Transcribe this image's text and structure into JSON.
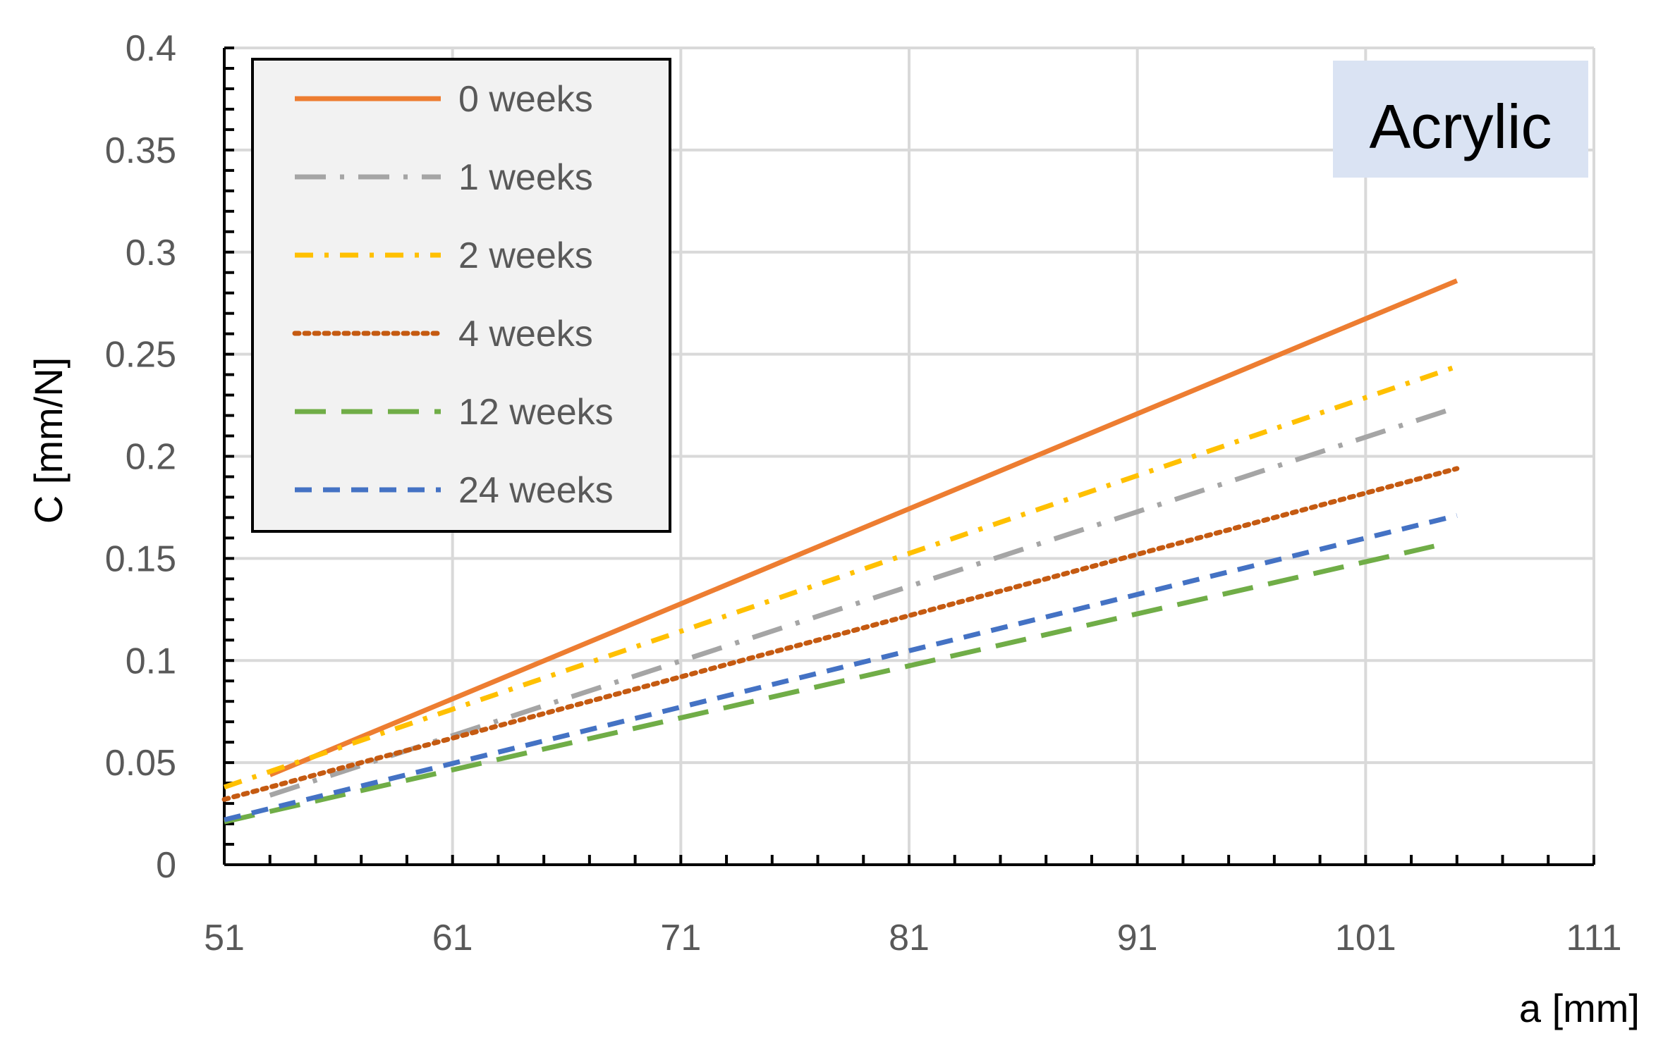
{
  "chart_data": {
    "type": "line",
    "title": "",
    "annotation": "Acrylic",
    "xlabel": "a [mm]",
    "ylabel": "C  [mm/N]",
    "xlim": [
      51,
      111
    ],
    "ylim": [
      0,
      0.4
    ],
    "x_ticks": [
      "51",
      "61",
      "71",
      "81",
      "91",
      "101",
      "111"
    ],
    "y_ticks": [
      "0",
      "0.05",
      "0.1",
      "0.15",
      "0.2",
      "0.25",
      "0.3",
      "0.35",
      "0.4"
    ],
    "grid": true,
    "legend_position": "top-left",
    "series": [
      {
        "name": "0 weeks",
        "color": "#ED7D31",
        "dash": "solid",
        "x": [
          53,
          105
        ],
        "y": [
          0.044,
          0.286
        ]
      },
      {
        "name": "1 weeks",
        "color": "#A5A5A5",
        "dash": "long-dash-dot",
        "x": [
          53,
          105
        ],
        "y": [
          0.034,
          0.224
        ]
      },
      {
        "name": "2 weeks",
        "color": "#FFC000",
        "dash": "dash-dot",
        "x": [
          51,
          105
        ],
        "y": [
          0.038,
          0.244
        ]
      },
      {
        "name": "4 weeks",
        "color": "#C55A11",
        "dash": "dotted",
        "x": [
          51,
          105
        ],
        "y": [
          0.032,
          0.194
        ]
      },
      {
        "name": "12 weeks",
        "color": "#70AD47",
        "dash": "long-dash",
        "x": [
          51,
          104
        ],
        "y": [
          0.021,
          0.156
        ]
      },
      {
        "name": "24 weeks",
        "color": "#4472C4",
        "dash": "dash",
        "x": [
          51,
          105
        ],
        "y": [
          0.022,
          0.171
        ]
      }
    ]
  }
}
